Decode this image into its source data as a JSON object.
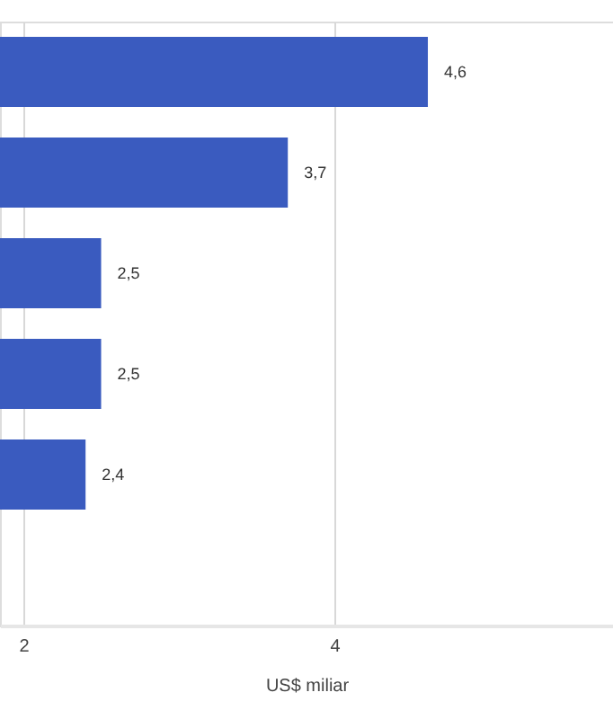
{
  "chart_data": {
    "type": "bar",
    "orientation": "horizontal",
    "categories": [
      null,
      null,
      null,
      null,
      null,
      null
    ],
    "values": [
      4.6,
      3.7,
      2.5,
      2.5,
      2.4,
      null
    ],
    "value_labels": [
      "4,6",
      "3,7",
      "2,5",
      "2,5",
      "2,4",
      null
    ],
    "color": "#3a5bbf",
    "xlabel": "US$ miliar",
    "xlim": [
      1.85,
      5.79
    ],
    "xticks": [
      2,
      4
    ],
    "grid": "x",
    "tick_labels": "x"
  }
}
